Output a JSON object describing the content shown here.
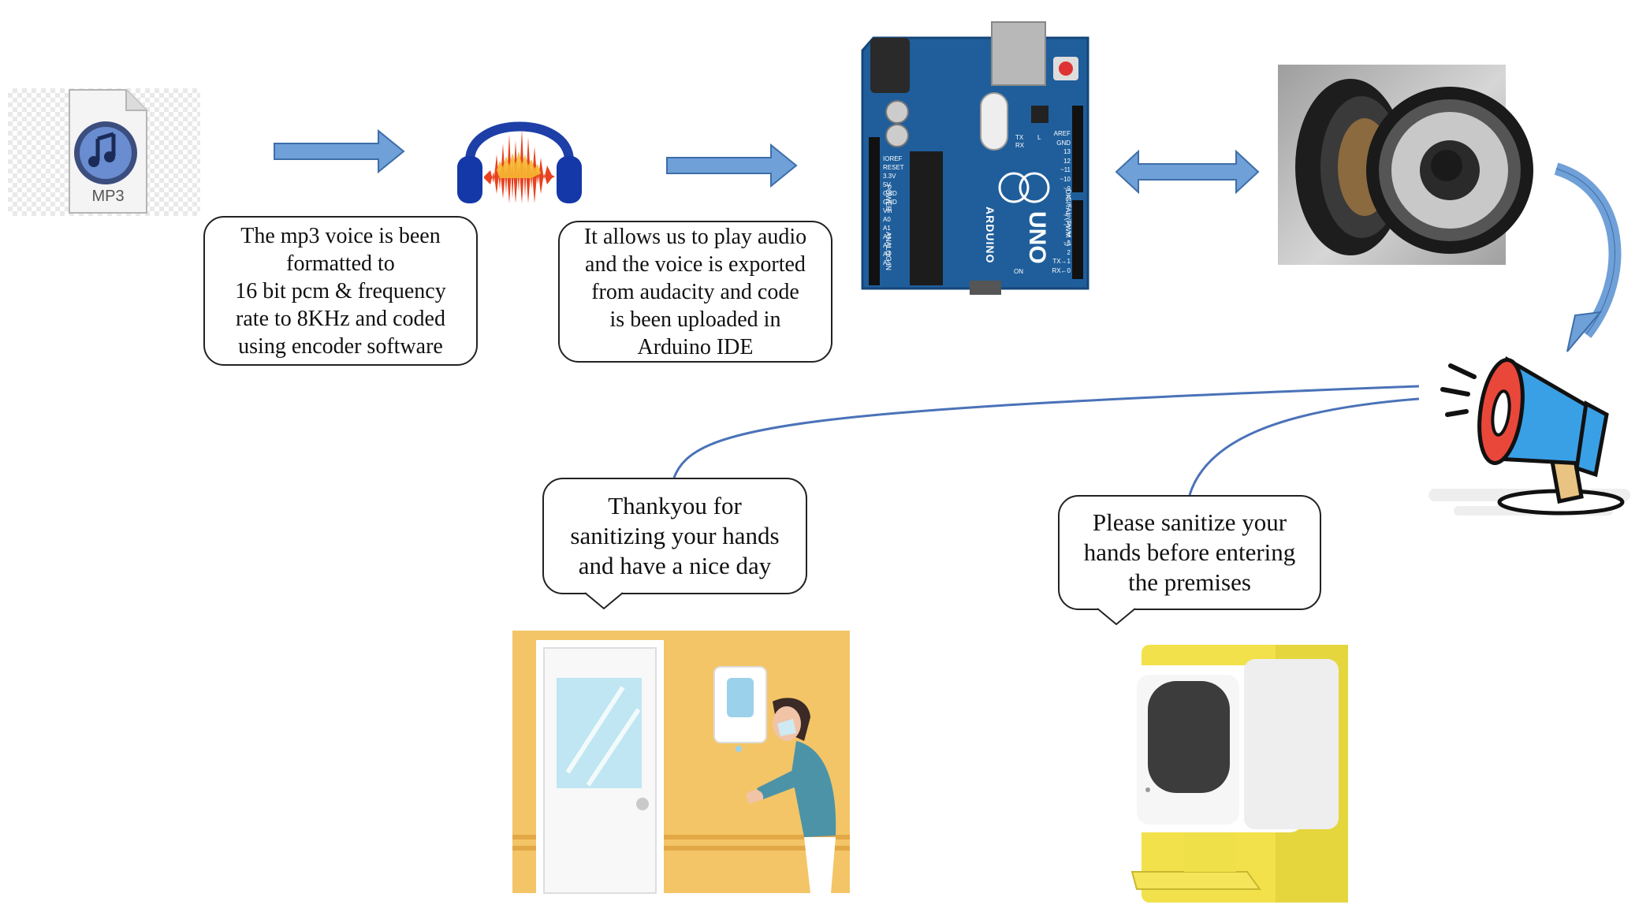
{
  "mp3_icon": {
    "label": "MP3",
    "icon": "mp3-file-icon"
  },
  "audacity_icon": {
    "icon": "audacity-headphones-icon"
  },
  "arduino_board": {
    "brand": "ARDUINO",
    "model": "UNO",
    "left_header_labels": [
      "IOREF",
      "RESET",
      "3.3V",
      "5V",
      "GND",
      "GND",
      "Vin",
      "A0",
      "A1",
      "A2",
      "A3",
      "A4",
      "A5"
    ],
    "right_header_labels": [
      "AREF",
      "GND",
      "13",
      "12",
      "~11",
      "~10",
      "~9",
      "8",
      "7",
      "~6",
      "~5",
      "4",
      "~3",
      "2",
      "TX→1",
      "RX←0"
    ],
    "section_power": "POWER",
    "section_analog": "ANALOG IN",
    "section_digital": "DIGITAL (PWM ~)",
    "tx_label": "TX",
    "rx_label": "RX",
    "l_label": "L",
    "on_label": "ON"
  },
  "speakers": {
    "icon": "speakers-icon"
  },
  "megaphone": {
    "icon": "megaphone-icon"
  },
  "callouts": {
    "encoding": "The mp3 voice is been\nformatted to\n16 bit pcm &  frequency\nrate to 8KHz and coded\nusing encoder software",
    "audacity": "It allows us to play audio\nand the voice is exported\nfrom audacity and code\nis been uploaded in\nArduino IDE",
    "thankyou": "Thankyou for\nsanitizing your hands\nand have a nice day",
    "please": "Please sanitize your\nhands before entering\nthe premises"
  },
  "colors": {
    "arrow_fill": "#6fa0d8",
    "arrow_stroke": "#3e6ea8",
    "connector": "#4a72b8",
    "board_blue": "#1f5e9b",
    "wall_yellow": "#f3c567",
    "panel_yellow": "#f2e14a"
  }
}
